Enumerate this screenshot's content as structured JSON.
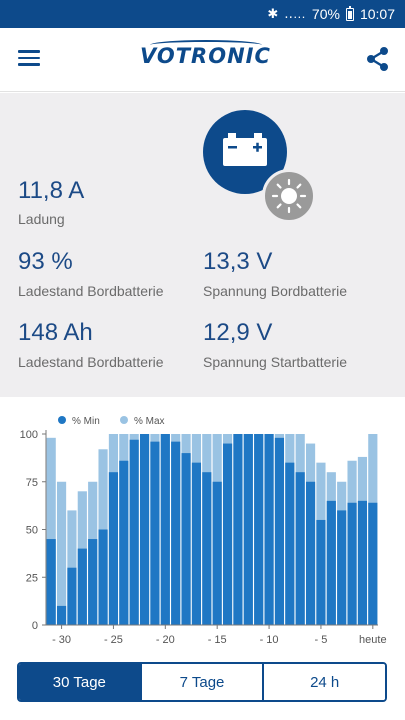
{
  "status_bar": {
    "signal": "‥…",
    "battery_percent": "70%",
    "time": "10:07"
  },
  "app": {
    "logo": "VOTRONIC"
  },
  "readings": {
    "current": {
      "value": "11,8 A",
      "label": "Ladung"
    },
    "soc": {
      "value": "93 %",
      "label": "Ladestand Bordbatterie"
    },
    "capacity": {
      "value": "148 Ah",
      "label": "Ladestand Bordbatterie"
    },
    "board_voltage": {
      "value": "13,3 V",
      "label": "Spannung Bordbatterie"
    },
    "starter_voltage": {
      "value": "12,9 V",
      "label": "Spannung Startbatterie"
    }
  },
  "icons": {
    "main": "battery-icon",
    "source": "sun-icon",
    "share": "share-icon",
    "menu": "menu-icon"
  },
  "colors": {
    "brand": "#0d4a8b",
    "bar_min": "#1f77c4",
    "bar_max": "#9ac3e3",
    "panel_bg": "#efeef0"
  },
  "chart_data": {
    "type": "bar",
    "legend": [
      "% Min",
      "% Max"
    ],
    "legend_position": "top-left",
    "x_tick_labels": [
      "- 30",
      "- 25",
      "- 20",
      "- 15",
      "- 10",
      "- 5",
      "heute"
    ],
    "x": [
      -31,
      -30,
      -29,
      -28,
      -27,
      -26,
      -25,
      -24,
      -23,
      -22,
      -21,
      -20,
      -19,
      -18,
      -17,
      -16,
      -15,
      -14,
      -13,
      -12,
      -11,
      -10,
      -9,
      -8,
      -7,
      -6,
      -5,
      -4,
      -3,
      -2,
      -1,
      0
    ],
    "series": [
      {
        "name": "% Min",
        "values": [
          45,
          10,
          30,
          40,
          45,
          50,
          80,
          86,
          97,
          100,
          96,
          100,
          96,
          90,
          85,
          80,
          75,
          95,
          100,
          100,
          100,
          100,
          98,
          85,
          80,
          75,
          55,
          65,
          60,
          64,
          65,
          64
        ]
      },
      {
        "name": "% Max",
        "values": [
          98,
          75,
          60,
          70,
          75,
          92,
          100,
          100,
          100,
          100,
          100,
          100,
          100,
          100,
          100,
          100,
          100,
          100,
          100,
          100,
          100,
          100,
          100,
          100,
          100,
          95,
          85,
          80,
          75,
          86,
          88,
          100
        ]
      }
    ],
    "y_ticks": [
      0,
      25,
      50,
      75,
      100
    ],
    "ylim": [
      0,
      100
    ],
    "grid": false
  },
  "tabs": [
    {
      "label": "30 Tage",
      "active": true
    },
    {
      "label": "7 Tage",
      "active": false
    },
    {
      "label": "24 h",
      "active": false
    }
  ]
}
